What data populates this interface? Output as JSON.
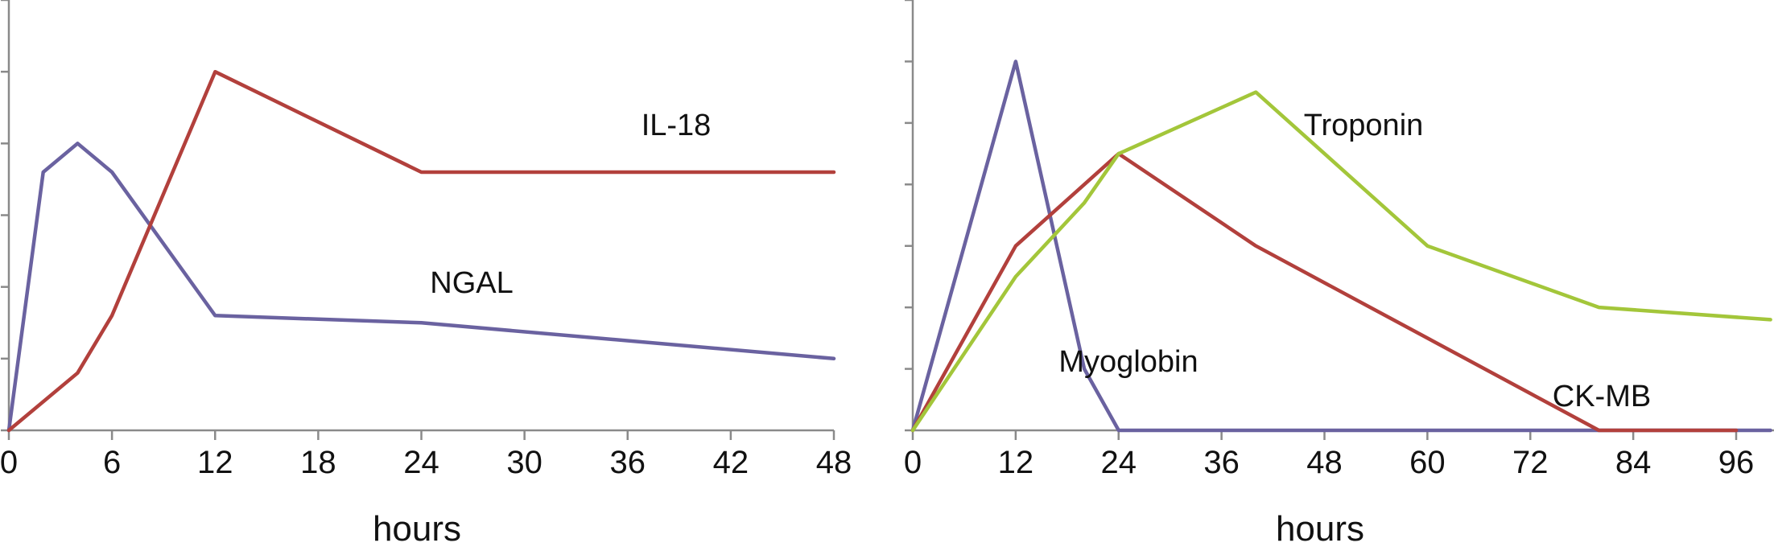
{
  "chart_data": [
    {
      "type": "line",
      "title": "",
      "xlabel": "hours",
      "ylabel": "",
      "xlim": [
        0,
        48
      ],
      "ylim": [
        0,
        6
      ],
      "x_ticks": [
        0,
        6,
        12,
        18,
        24,
        30,
        36,
        42,
        48
      ],
      "y_tick_count": 7,
      "grid": false,
      "series": [
        {
          "name": "NGAL",
          "color": "#6a62a0",
          "x": [
            0,
            2,
            4,
            6,
            12,
            24,
            48
          ],
          "y": [
            0,
            3.6,
            4.0,
            3.6,
            1.6,
            1.5,
            1.0
          ]
        },
        {
          "name": "IL-18",
          "color": "#b2403c",
          "x": [
            0,
            4,
            6,
            12,
            24,
            48
          ],
          "y": [
            0,
            0.8,
            1.6,
            5.0,
            3.6,
            3.6
          ]
        }
      ]
    },
    {
      "type": "line",
      "title": "",
      "xlabel": "hours",
      "ylabel": "",
      "xlim": [
        0,
        96
      ],
      "ylim": [
        0,
        7
      ],
      "x_ticks": [
        0,
        12,
        24,
        36,
        48,
        60,
        72,
        84,
        96
      ],
      "y_tick_count": 8,
      "grid": false,
      "series": [
        {
          "name": "Myoglobin",
          "color": "#6a62a0",
          "x": [
            0,
            12,
            20,
            24,
            100
          ],
          "y": [
            0,
            6.0,
            1.0,
            0,
            0
          ]
        },
        {
          "name": "CK-MB",
          "color": "#b2403c",
          "x": [
            0,
            12,
            24,
            40,
            80,
            96
          ],
          "y": [
            0,
            3.0,
            4.5,
            3.0,
            0,
            0
          ]
        },
        {
          "name": "Troponin",
          "color": "#a3c63a",
          "x": [
            0,
            12,
            20,
            24,
            40,
            60,
            80,
            100
          ],
          "y": [
            0,
            2.5,
            3.7,
            4.5,
            5.5,
            3.0,
            2.0,
            1.8
          ]
        }
      ]
    }
  ]
}
